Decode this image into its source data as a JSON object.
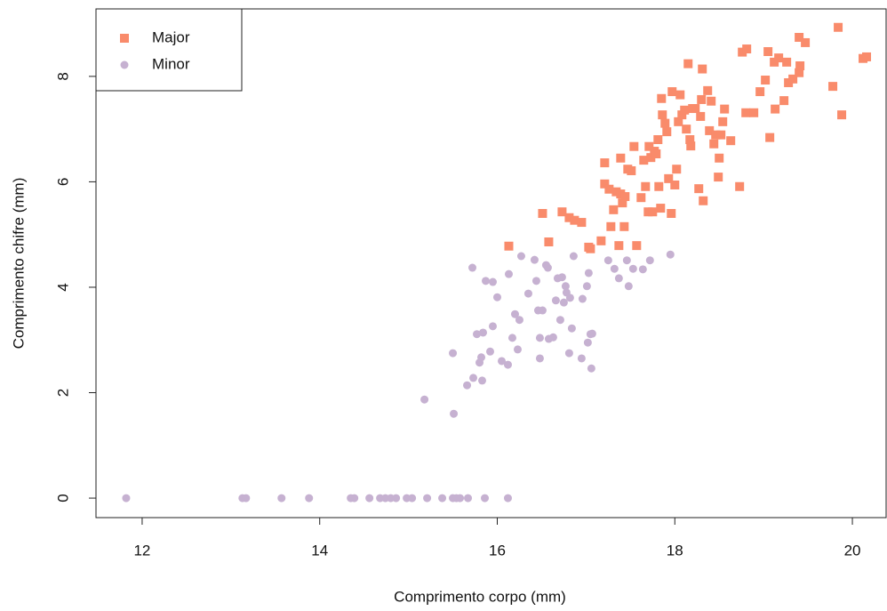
{
  "chart_data": {
    "type": "scatter",
    "x_label": "Comprimento corpo (mm)",
    "y_label": "Comprimento chifre (mm)",
    "xlim": [
      11.48,
      20.38
    ],
    "ylim": [
      -0.37,
      9.28
    ],
    "xticks": [
      12,
      14,
      16,
      18,
      20
    ],
    "yticks": [
      0,
      2,
      4,
      6,
      8
    ],
    "legend_position": "top-left",
    "series": [
      {
        "name": "Major",
        "color": "#f98b6b",
        "marker": "square",
        "x": [
          16.13,
          16.51,
          16.58,
          16.73,
          16.81,
          16.87,
          16.95,
          17.03,
          17.05,
          17.17,
          17.21,
          17.21,
          17.26,
          17.28,
          17.31,
          17.34,
          17.37,
          17.39,
          17.39,
          17.41,
          17.43,
          17.44,
          17.47,
          17.51,
          17.54,
          17.57,
          17.62,
          17.65,
          17.67,
          17.7,
          17.71,
          17.73,
          17.75,
          17.77,
          17.79,
          17.81,
          17.82,
          17.84,
          17.85,
          17.86,
          17.89,
          17.91,
          17.93,
          17.96,
          17.97,
          18.0,
          18.02,
          18.04,
          18.06,
          18.08,
          18.11,
          18.13,
          18.15,
          18.17,
          18.18,
          18.2,
          18.23,
          18.27,
          18.29,
          18.3,
          18.31,
          18.32,
          18.37,
          18.39,
          18.41,
          18.44,
          18.46,
          18.49,
          18.5,
          18.52,
          18.54,
          18.56,
          18.63,
          18.73,
          18.76,
          18.81,
          18.8,
          18.89,
          18.96,
          19.02,
          19.05,
          19.07,
          19.12,
          19.13,
          19.17,
          19.23,
          19.26,
          19.28,
          19.33,
          19.4,
          19.41,
          19.4,
          19.47,
          19.78,
          19.84,
          19.88,
          20.12,
          20.16
        ],
        "values": [
          4.78,
          5.4,
          4.86,
          5.43,
          5.32,
          5.27,
          5.23,
          4.76,
          4.73,
          4.88,
          6.36,
          5.96,
          5.86,
          5.15,
          5.47,
          5.81,
          4.79,
          6.45,
          5.77,
          5.6,
          5.15,
          5.72,
          6.24,
          6.21,
          6.67,
          4.79,
          5.7,
          6.41,
          5.91,
          5.43,
          6.67,
          6.46,
          5.43,
          6.58,
          6.53,
          6.8,
          5.91,
          5.5,
          7.58,
          7.27,
          7.11,
          6.95,
          6.06,
          5.4,
          7.71,
          5.94,
          6.24,
          7.14,
          7.65,
          7.27,
          7.36,
          7.0,
          8.24,
          6.8,
          6.68,
          7.39,
          7.39,
          5.87,
          7.24,
          7.56,
          8.14,
          5.64,
          7.73,
          6.97,
          7.53,
          6.72,
          6.89,
          6.09,
          6.45,
          6.89,
          7.14,
          7.38,
          6.78,
          5.91,
          8.46,
          8.52,
          7.31,
          7.31,
          7.71,
          7.93,
          8.47,
          6.84,
          8.27,
          7.38,
          8.35,
          7.54,
          8.27,
          7.88,
          7.95,
          8.07,
          8.2,
          8.74,
          8.64,
          7.81,
          8.93,
          7.27,
          8.34,
          8.37
        ]
      },
      {
        "name": "Minor",
        "color": "#c6b1d1",
        "marker": "circle",
        "x": [
          11.82,
          13.13,
          13.17,
          13.57,
          13.88,
          14.35,
          14.39,
          14.56,
          14.68,
          14.74,
          14.8,
          14.86,
          14.98,
          15.04,
          15.21,
          15.38,
          15.5,
          15.54,
          15.58,
          15.67,
          15.86,
          16.12,
          15.18,
          15.51,
          15.5,
          15.66,
          15.72,
          15.73,
          15.77,
          15.8,
          15.82,
          15.83,
          15.84,
          15.87,
          15.92,
          15.95,
          15.95,
          16.0,
          16.05,
          16.12,
          16.13,
          16.17,
          16.2,
          16.23,
          16.25,
          16.27,
          16.35,
          16.42,
          16.44,
          16.46,
          16.48,
          16.48,
          16.51,
          16.55,
          16.57,
          16.58,
          16.63,
          16.66,
          16.68,
          16.71,
          16.73,
          16.75,
          16.77,
          16.78,
          16.81,
          16.82,
          16.84,
          16.86,
          16.95,
          16.96,
          17.01,
          17.02,
          17.03,
          17.05,
          17.06,
          17.07,
          17.25,
          17.32,
          17.37,
          17.46,
          17.48,
          17.53,
          17.64,
          17.72,
          17.95
        ],
        "values": [
          0,
          0,
          0,
          0,
          0,
          0,
          0,
          0,
          0,
          0,
          0,
          0,
          0,
          0,
          0,
          0,
          0,
          0,
          0,
          0,
          0,
          0,
          1.87,
          1.6,
          2.75,
          2.14,
          4.37,
          2.28,
          3.11,
          2.57,
          2.67,
          2.23,
          3.14,
          4.12,
          2.78,
          4.1,
          3.26,
          3.81,
          2.6,
          2.53,
          4.25,
          3.04,
          3.49,
          2.82,
          3.38,
          4.59,
          3.88,
          4.52,
          4.12,
          3.56,
          3.04,
          2.65,
          3.56,
          4.42,
          4.37,
          3.02,
          3.05,
          3.75,
          4.17,
          3.38,
          4.19,
          3.71,
          4.02,
          3.9,
          2.75,
          3.8,
          3.22,
          4.59,
          2.65,
          3.78,
          4.02,
          2.95,
          4.27,
          3.11,
          2.46,
          3.12,
          4.51,
          4.35,
          4.17,
          4.51,
          4.02,
          4.35,
          4.34,
          4.51,
          4.62
        ]
      }
    ]
  }
}
